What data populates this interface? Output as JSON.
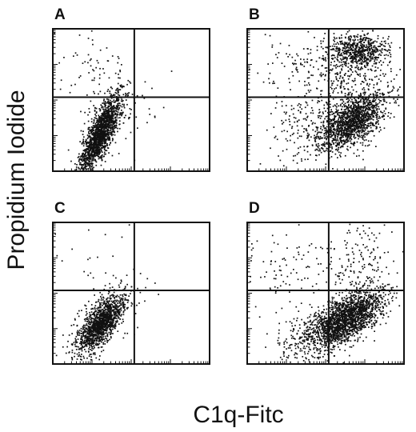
{
  "figure": {
    "xlabel": "C1q-Fitc",
    "ylabel": "Propidium Iodide"
  },
  "chart_data": [
    {
      "type": "scatter",
      "panel": "A",
      "x_scale": "log",
      "y_scale": "log",
      "xlim": [
        1,
        10000
      ],
      "ylim": [
        1,
        10000
      ],
      "quadrant_gates": {
        "x": 120,
        "y": 120
      },
      "clusters": [
        {
          "center": [
            16,
            12
          ],
          "spread": [
            0.26,
            0.32
          ],
          "tilt": 1.6,
          "n": 1600
        },
        {
          "center": [
            60,
            70
          ],
          "spread": [
            0.5,
            0.5
          ],
          "tilt": 0.0,
          "n": 70
        },
        {
          "center": [
            10,
            900
          ],
          "spread": [
            0.5,
            0.6
          ],
          "tilt": 0.0,
          "n": 70
        }
      ]
    },
    {
      "type": "scatter",
      "panel": "B",
      "x_scale": "log",
      "y_scale": "log",
      "xlim": [
        1,
        10000
      ],
      "ylim": [
        1,
        10000
      ],
      "quadrant_gates": {
        "x": 120,
        "y": 120
      },
      "clusters": [
        {
          "center": [
            450,
            25
          ],
          "spread": [
            0.42,
            0.33
          ],
          "tilt": 0.55,
          "n": 1400
        },
        {
          "center": [
            700,
            2600
          ],
          "spread": [
            0.35,
            0.22
          ],
          "tilt": 0.0,
          "n": 600
        },
        {
          "center": [
            300,
            600
          ],
          "spread": [
            0.55,
            0.55
          ],
          "tilt": 0.0,
          "n": 300
        },
        {
          "center": [
            50,
            20
          ],
          "spread": [
            0.55,
            0.45
          ],
          "tilt": 0.4,
          "n": 200
        },
        {
          "center": [
            20,
            500
          ],
          "spread": [
            0.6,
            0.7
          ],
          "tilt": 0.0,
          "n": 110
        }
      ]
    },
    {
      "type": "scatter",
      "panel": "C",
      "x_scale": "log",
      "y_scale": "log",
      "xlim": [
        1,
        10000
      ],
      "ylim": [
        1,
        10000
      ],
      "quadrant_gates": {
        "x": 120,
        "y": 120
      },
      "clusters": [
        {
          "center": [
            16,
            14
          ],
          "spread": [
            0.28,
            0.28
          ],
          "tilt": 1.0,
          "n": 1200
        },
        {
          "center": [
            18,
            18
          ],
          "spread": [
            0.5,
            0.45
          ],
          "tilt": 0.8,
          "n": 250
        },
        {
          "center": [
            10,
            700
          ],
          "spread": [
            0.5,
            0.6
          ],
          "tilt": 0.0,
          "n": 25
        }
      ]
    },
    {
      "type": "scatter",
      "panel": "D",
      "x_scale": "log",
      "y_scale": "log",
      "xlim": [
        1,
        10000
      ],
      "ylim": [
        1,
        10000
      ],
      "quadrant_gates": {
        "x": 120,
        "y": 120
      },
      "clusters": [
        {
          "center": [
            350,
            20
          ],
          "spread": [
            0.45,
            0.32
          ],
          "tilt": 0.55,
          "n": 1700
        },
        {
          "center": [
            60,
            8
          ],
          "spread": [
            0.5,
            0.35
          ],
          "tilt": 0.4,
          "n": 350
        },
        {
          "center": [
            700,
            700
          ],
          "spread": [
            0.4,
            0.7
          ],
          "tilt": 0.0,
          "n": 180
        },
        {
          "center": [
            20,
            500
          ],
          "spread": [
            0.6,
            0.7
          ],
          "tilt": 0.0,
          "n": 110
        }
      ]
    }
  ]
}
